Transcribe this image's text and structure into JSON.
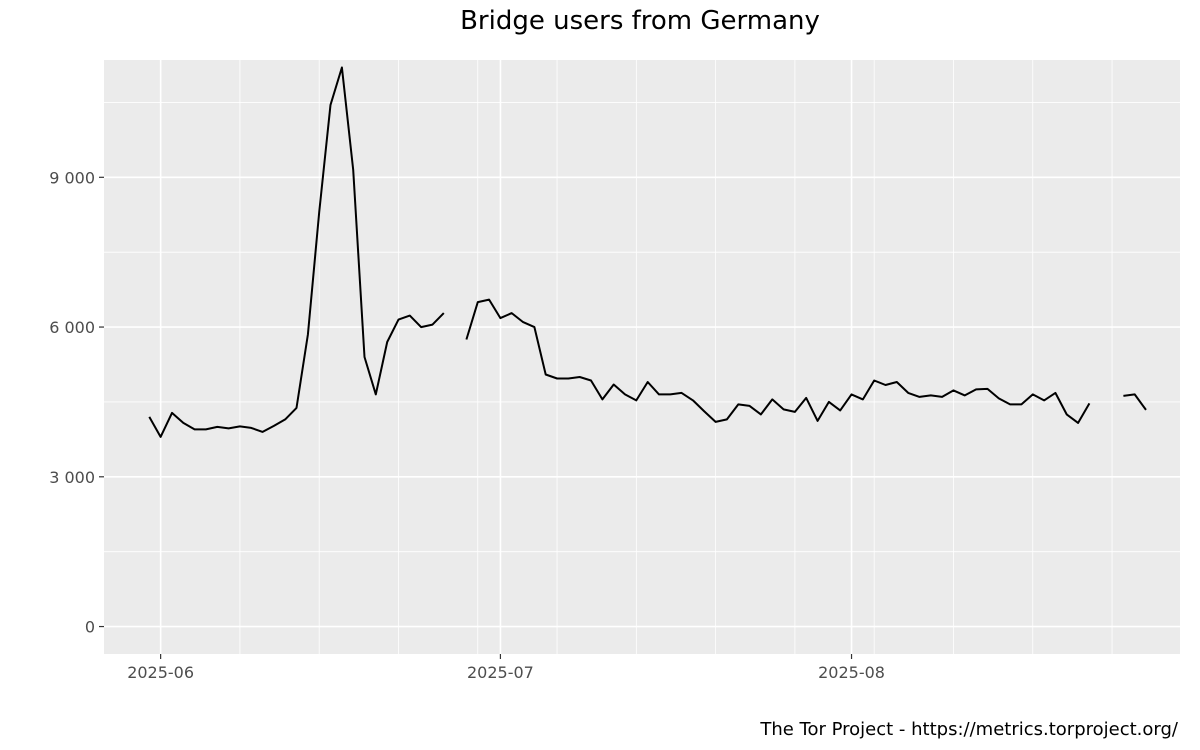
{
  "chart_data": {
    "type": "line",
    "title": "Bridge users from Germany",
    "xlabel": "",
    "ylabel": "",
    "caption": "The Tor Project - https://metrics.torproject.org/",
    "y_ticks": [
      0,
      3000,
      6000,
      9000
    ],
    "y_tick_labels": [
      "0",
      "3 000",
      "6 000",
      "9 000"
    ],
    "ylim": [
      -550,
      11350
    ],
    "x_ticks": [
      "2025-06-01",
      "2025-07-01",
      "2025-08-01"
    ],
    "x_tick_labels": [
      "2025-06",
      "2025-07",
      "2025-08"
    ],
    "xlim": [
      "2025-05-27",
      "2025-08-30"
    ],
    "grid": true,
    "background": "#ebebeb",
    "line_color": "#000000",
    "series": [
      {
        "points": [
          [
            "2025-05-31",
            4200
          ],
          [
            "2025-06-01",
            3800
          ],
          [
            "2025-06-02",
            4280
          ],
          [
            "2025-06-03",
            4080
          ],
          [
            "2025-06-04",
            3950
          ],
          [
            "2025-06-05",
            3950
          ],
          [
            "2025-06-06",
            4000
          ],
          [
            "2025-06-07",
            3970
          ],
          [
            "2025-06-08",
            4010
          ],
          [
            "2025-06-09",
            3980
          ],
          [
            "2025-06-10",
            3900
          ],
          [
            "2025-06-11",
            4020
          ],
          [
            "2025-06-12",
            4150
          ],
          [
            "2025-06-13",
            4380
          ],
          [
            "2025-06-14",
            5850
          ],
          [
            "2025-06-15",
            8300
          ],
          [
            "2025-06-16",
            10450
          ],
          [
            "2025-06-17",
            11200
          ],
          [
            "2025-06-18",
            9150
          ],
          [
            "2025-06-19",
            5400
          ],
          [
            "2025-06-20",
            4650
          ],
          [
            "2025-06-21",
            5700
          ],
          [
            "2025-06-22",
            6150
          ],
          [
            "2025-06-23",
            6230
          ],
          [
            "2025-06-24",
            6000
          ],
          [
            "2025-06-25",
            6050
          ],
          [
            "2025-06-26",
            6280
          ],
          [
            "2025-06-27",
            null
          ],
          [
            "2025-06-28",
            5750
          ],
          [
            "2025-06-29",
            6500
          ],
          [
            "2025-06-30",
            6550
          ],
          [
            "2025-07-01",
            6180
          ],
          [
            "2025-07-02",
            6280
          ],
          [
            "2025-07-03",
            6100
          ],
          [
            "2025-07-04",
            6000
          ],
          [
            "2025-07-05",
            5050
          ],
          [
            "2025-07-06",
            4970
          ],
          [
            "2025-07-07",
            4970
          ],
          [
            "2025-07-08",
            5000
          ],
          [
            "2025-07-09",
            4930
          ],
          [
            "2025-07-10",
            4550
          ],
          [
            "2025-07-11",
            4850
          ],
          [
            "2025-07-12",
            4650
          ],
          [
            "2025-07-13",
            4530
          ],
          [
            "2025-07-14",
            4900
          ],
          [
            "2025-07-15",
            4650
          ],
          [
            "2025-07-16",
            4650
          ],
          [
            "2025-07-17",
            4680
          ],
          [
            "2025-07-18",
            4530
          ],
          [
            "2025-07-19",
            4310
          ],
          [
            "2025-07-20",
            4100
          ],
          [
            "2025-07-21",
            4150
          ],
          [
            "2025-07-22",
            4450
          ],
          [
            "2025-07-23",
            4420
          ],
          [
            "2025-07-24",
            4250
          ],
          [
            "2025-07-25",
            4550
          ],
          [
            "2025-07-26",
            4350
          ],
          [
            "2025-07-27",
            4300
          ],
          [
            "2025-07-28",
            4580
          ],
          [
            "2025-07-29",
            4120
          ],
          [
            "2025-07-30",
            4500
          ],
          [
            "2025-07-31",
            4330
          ],
          [
            "2025-08-01",
            4650
          ],
          [
            "2025-08-02",
            4550
          ],
          [
            "2025-08-03",
            4930
          ],
          [
            "2025-08-04",
            4840
          ],
          [
            "2025-08-05",
            4900
          ],
          [
            "2025-08-06",
            4680
          ],
          [
            "2025-08-07",
            4600
          ],
          [
            "2025-08-08",
            4630
          ],
          [
            "2025-08-09",
            4600
          ],
          [
            "2025-08-10",
            4730
          ],
          [
            "2025-08-11",
            4630
          ],
          [
            "2025-08-12",
            4750
          ],
          [
            "2025-08-13",
            4760
          ],
          [
            "2025-08-14",
            4570
          ],
          [
            "2025-08-15",
            4450
          ],
          [
            "2025-08-16",
            4450
          ],
          [
            "2025-08-17",
            4650
          ],
          [
            "2025-08-18",
            4530
          ],
          [
            "2025-08-19",
            4680
          ],
          [
            "2025-08-20",
            4250
          ],
          [
            "2025-08-21",
            4080
          ],
          [
            "2025-08-22",
            4470
          ],
          [
            "2025-08-23",
            null
          ],
          [
            "2025-08-24",
            null
          ],
          [
            "2025-08-25",
            4620
          ],
          [
            "2025-08-26",
            4650
          ],
          [
            "2025-08-27",
            4340
          ]
        ]
      }
    ]
  }
}
